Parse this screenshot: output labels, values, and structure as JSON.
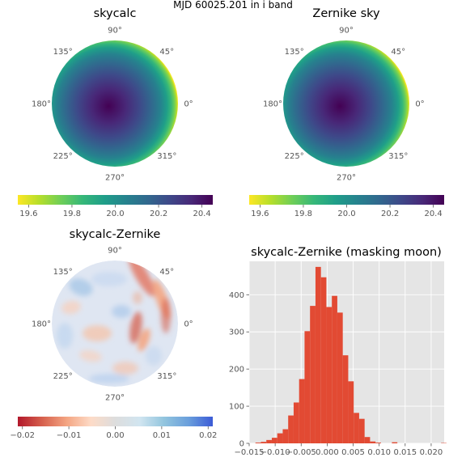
{
  "figure": {
    "suptitle": "MJD 60025.201 in i band"
  },
  "colors": {
    "viridis": [
      "#440154",
      "#482878",
      "#3e4989",
      "#31688e",
      "#26828e",
      "#1f9e89",
      "#35b779",
      "#6ece58",
      "#b5de2b",
      "#fde725"
    ],
    "rdbu": [
      "#b2182b",
      "#d6604d",
      "#f4a582",
      "#fddbc7",
      "#dddddd",
      "#d1e5f0",
      "#92c5de",
      "#6a9fdc",
      "#3b5bd6"
    ],
    "hist_bar": "#e24a33",
    "hist_bg": "#e5e5e5",
    "grid": "#ffffff"
  },
  "chart_data": [
    {
      "type": "heatmap",
      "projection": "polar",
      "title": "skycalc",
      "angle_labels": [
        "90°",
        "45°",
        "0°",
        "315°",
        "270°",
        "225°",
        "180°",
        "135°"
      ],
      "colorbar": {
        "cmap": "viridis_r",
        "range": [
          19.55,
          20.45
        ],
        "ticks": [
          "19.6",
          "19.8",
          "20.0",
          "20.2",
          "20.4"
        ],
        "tick_values": [
          19.6,
          19.8,
          20.0,
          20.2,
          20.4
        ]
      }
    },
    {
      "type": "heatmap",
      "projection": "polar",
      "title": "Zernike sky",
      "angle_labels": [
        "90°",
        "45°",
        "0°",
        "315°",
        "270°",
        "225°",
        "180°",
        "135°"
      ],
      "colorbar": {
        "cmap": "viridis_r",
        "range": [
          19.55,
          20.45
        ],
        "ticks": [
          "19.6",
          "19.8",
          "20.0",
          "20.2",
          "20.4"
        ],
        "tick_values": [
          19.6,
          19.8,
          20.0,
          20.2,
          20.4
        ]
      }
    },
    {
      "type": "heatmap",
      "projection": "polar",
      "title": "skycalc-Zernike",
      "angle_labels": [
        "90°",
        "45°",
        "0°",
        "315°",
        "270°",
        "225°",
        "180°",
        "135°"
      ],
      "colorbar": {
        "cmap": "RdBu",
        "range": [
          -0.021,
          0.021
        ],
        "ticks": [
          "−0.02",
          "−0.01",
          "0.00",
          "0.01",
          "0.02"
        ],
        "tick_values": [
          -0.02,
          -0.01,
          0.0,
          0.01,
          0.02
        ]
      }
    },
    {
      "type": "bar",
      "subtype": "histogram",
      "title": "skycalc-Zernike (masking moon)",
      "xlim": [
        -0.015,
        0.0225
      ],
      "ylim": [
        0,
        490
      ],
      "bin_width": 0.00105,
      "bin_start": -0.0138,
      "counts": [
        2,
        4,
        9,
        15,
        27,
        38,
        75,
        110,
        173,
        302,
        370,
        475,
        447,
        367,
        397,
        352,
        237,
        167,
        82,
        66,
        17,
        5,
        2,
        0,
        0,
        3,
        0,
        0,
        0,
        0,
        0,
        0,
        0,
        0,
        1
      ],
      "x_ticks": [
        "−0.015",
        "−0.010",
        "−0.005",
        "0.000",
        "0.005",
        "0.010",
        "0.015",
        "0.020"
      ],
      "x_tick_values": [
        -0.015,
        -0.01,
        -0.005,
        0.0,
        0.005,
        0.01,
        0.015,
        0.02
      ],
      "y_ticks": [
        "0",
        "100",
        "200",
        "300",
        "400"
      ],
      "y_tick_values": [
        0,
        100,
        200,
        300,
        400
      ],
      "grid": true
    }
  ]
}
